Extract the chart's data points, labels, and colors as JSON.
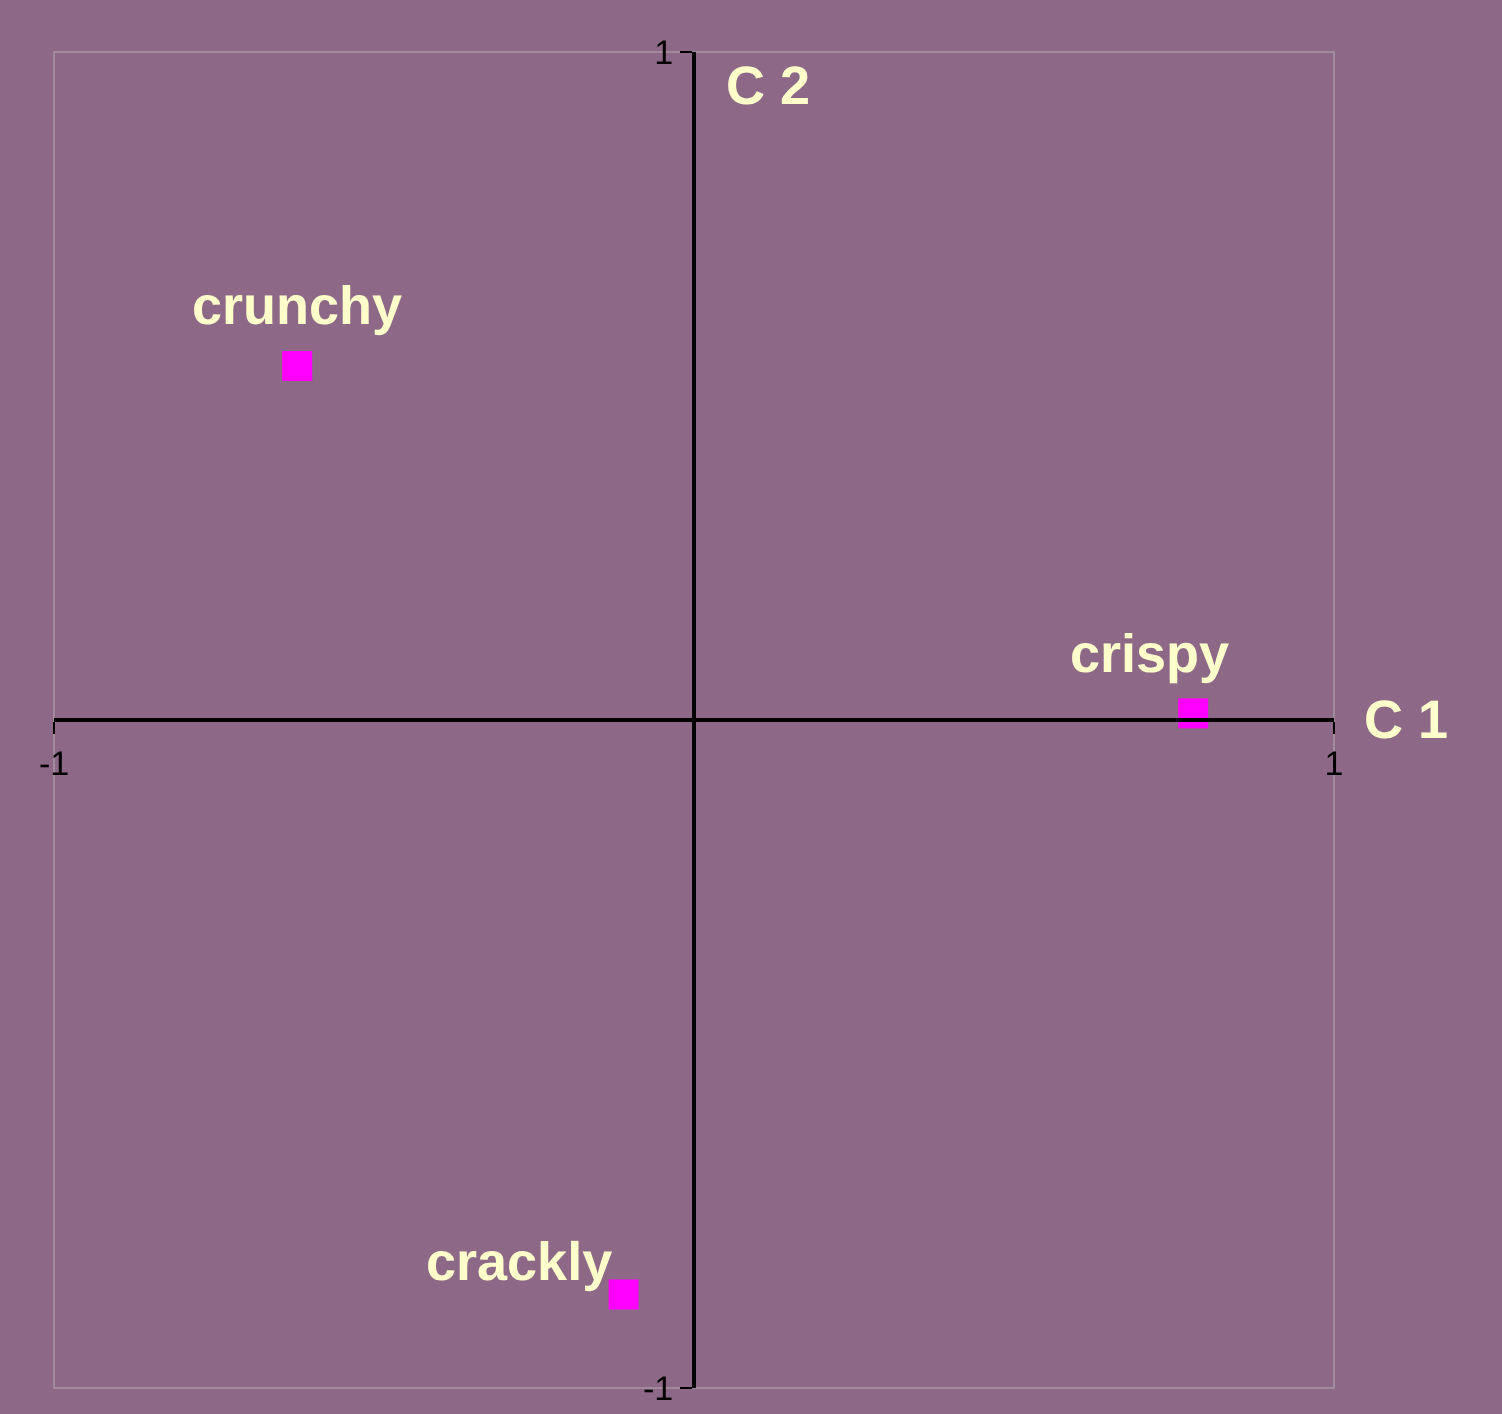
{
  "chart_data": {
    "type": "scatter",
    "xlabel": "C 1",
    "ylabel": "C 2",
    "x": [
      -0.62,
      0.78,
      -0.11
    ],
    "series": [
      {
        "color": "#ff00ff",
        "values": [
          0.53,
          0.01,
          -0.86
        ]
      }
    ],
    "marker": "square",
    "xlim": [
      -1,
      1
    ],
    "ylim": [
      -1,
      1
    ],
    "xticks": [
      -1,
      1
    ],
    "yticks": [
      -1,
      1
    ],
    "annotations": [
      {
        "text": "crunchy",
        "x": -0.62,
        "y": 0.53
      },
      {
        "text": "crispy",
        "x": 0.78,
        "y": 0.01
      },
      {
        "text": "crackly",
        "x": -0.11,
        "y": -0.86
      }
    ]
  }
}
